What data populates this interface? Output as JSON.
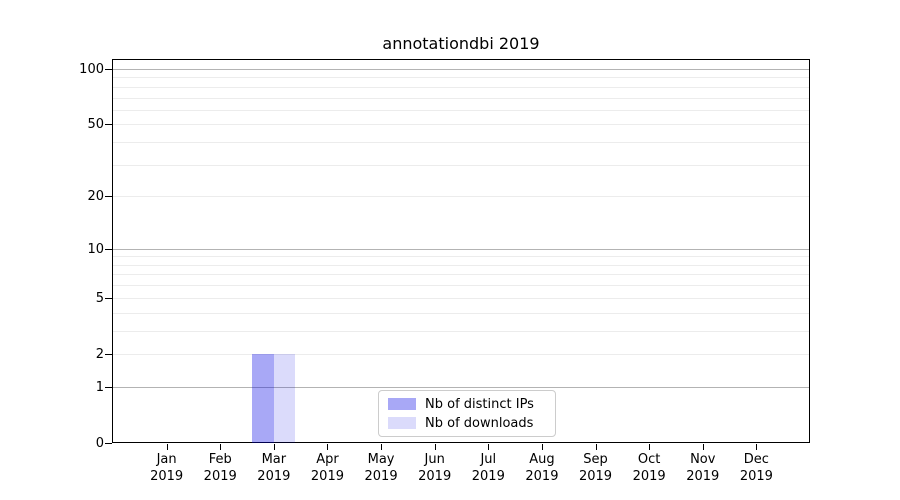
{
  "title": "annotationdbi 2019",
  "chart_data": {
    "type": "bar",
    "title": "annotationdbi 2019",
    "categories": [
      "Jan 2019",
      "Feb 2019",
      "Mar 2019",
      "Apr 2019",
      "May 2019",
      "Jun 2019",
      "Jul 2019",
      "Aug 2019",
      "Sep 2019",
      "Oct 2019",
      "Nov 2019",
      "Dec 2019"
    ],
    "series": [
      {
        "name": "Nb of distinct IPs",
        "color": "rgba(0,0,230,0.34)",
        "values": [
          0,
          0,
          2,
          0,
          0,
          0,
          0,
          0,
          0,
          0,
          0,
          0
        ]
      },
      {
        "name": "Nb of downloads",
        "color": "rgba(0,0,230,0.14)",
        "values": [
          0,
          0,
          2,
          0,
          0,
          0,
          0,
          0,
          0,
          0,
          0,
          0
        ]
      }
    ],
    "xlabel": "",
    "ylabel": "",
    "y_scale": "log1p",
    "ylim": [
      0,
      112
    ],
    "y_ticks": [
      0,
      1,
      2,
      5,
      10,
      20,
      50,
      100
    ],
    "y_major_grid": [
      1,
      10,
      100
    ],
    "y_minor_grid": [
      2,
      3,
      4,
      5,
      6,
      7,
      8,
      9,
      20,
      30,
      40,
      50,
      60,
      70,
      80,
      90
    ],
    "grid": true,
    "legend_position": "lower center"
  },
  "colors": {
    "grid_major": "#b3b3b3",
    "grid_minor": "#ececec",
    "axis": "#000000",
    "background": "#ffffff"
  }
}
